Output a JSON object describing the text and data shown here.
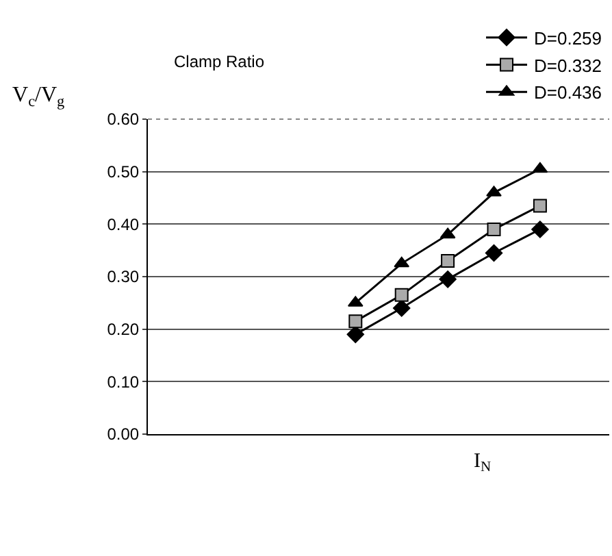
{
  "chart_data": {
    "type": "line",
    "title": "Clamp Ratio",
    "xlabel": "I$_{N}$",
    "ylabel": "V$_{c}$/V$_{g}$",
    "categories": [
      null,
      null,
      null,
      null,
      null,
      null,
      null,
      null,
      null,
      null
    ],
    "series": [
      {
        "name": "D=0.259",
        "color": "#000000",
        "marker": "diamond",
        "values": [
          null,
          null,
          null,
          null,
          0.19,
          0.24,
          0.295,
          0.345,
          0.39,
          null
        ]
      },
      {
        "name": "D=0.332",
        "color": "#000000",
        "marker": "square",
        "values": [
          null,
          null,
          null,
          null,
          0.215,
          0.265,
          0.33,
          0.39,
          0.435,
          null
        ]
      },
      {
        "name": "D=0.436",
        "color": "#000000",
        "marker": "triangle",
        "values": [
          null,
          null,
          null,
          null,
          0.25,
          0.325,
          0.38,
          0.46,
          0.505,
          null
        ]
      }
    ],
    "ylim": [
      0,
      0.6
    ],
    "yticks": [
      {
        "value": 0,
        "label": "0.00"
      },
      {
        "value": 0.1,
        "label": "0.10"
      },
      {
        "value": 0.2,
        "label": "0.20"
      },
      {
        "value": 0.3,
        "label": "0.30"
      },
      {
        "value": 0.4,
        "label": "0.40"
      },
      {
        "value": 0.5,
        "label": "0.50"
      },
      {
        "value": 0.6,
        "label": "0.60"
      }
    ],
    "grid": "y",
    "legend": "top right",
    "line_style": "solid"
  }
}
